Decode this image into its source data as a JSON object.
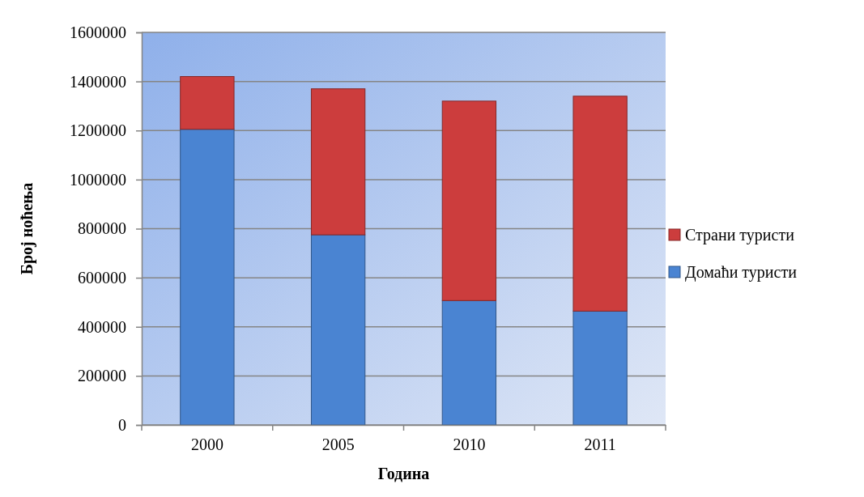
{
  "chart_data": {
    "type": "bar",
    "stacked": true,
    "xlabel": "Година",
    "ylabel": "Број ноћења",
    "categories": [
      "2000",
      "2005",
      "2010",
      "2011"
    ],
    "series": [
      {
        "name": "Домаћи туристи",
        "color": "#4a84d2",
        "values": [
          1205000,
          775000,
          507000,
          464000
        ]
      },
      {
        "name": "Страни туристи",
        "color": "#cc3d3d",
        "values": [
          215000,
          595000,
          813000,
          876000
        ]
      }
    ],
    "ylim": [
      0,
      1600000
    ],
    "yticks": [
      0,
      200000,
      400000,
      600000,
      800000,
      1000000,
      1200000,
      1400000,
      1600000
    ],
    "grid": "y",
    "legend": "right"
  }
}
